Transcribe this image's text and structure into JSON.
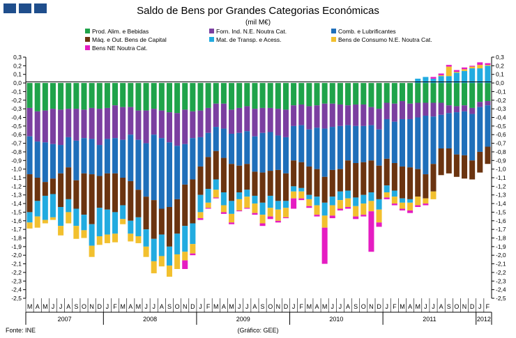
{
  "chart_data": {
    "type": "bar",
    "stacked": true,
    "title": "Saldo de Bens por Grandes Categorias Económicas",
    "subtitle": "(mil M€)",
    "source_left": "Fonte: INE",
    "source_center": "(Gráfico: GEE)",
    "ylim": [
      -2.5,
      0.3
    ],
    "yticks": [
      "0,3",
      "0,2",
      "0,1",
      "0,0",
      "-0,1",
      "-0,2",
      "-0,3",
      "-0,4",
      "-0,5",
      "-0,6",
      "-0,7",
      "-0,8",
      "-0,9",
      "-1,0",
      "-1,1",
      "-1,2",
      "-1,3",
      "-1,4",
      "-1,5",
      "-1,6",
      "-1,7",
      "-1,8",
      "-1,9",
      "-2,0",
      "-2,1",
      "-2,2",
      "-2,3",
      "-2,4",
      "-2,5"
    ],
    "grid": false,
    "legend_position": "top",
    "months": [
      "M",
      "A",
      "M",
      "J",
      "J",
      "A",
      "S",
      "O",
      "N",
      "D",
      "J",
      "F",
      "M",
      "A",
      "M",
      "J",
      "J",
      "A",
      "S",
      "O",
      "N",
      "D",
      "J",
      "F",
      "M",
      "A",
      "M",
      "J",
      "J",
      "A",
      "S",
      "O",
      "N",
      "D",
      "J",
      "F",
      "M",
      "A",
      "M",
      "J",
      "J",
      "A",
      "S",
      "O",
      "N",
      "D",
      "J",
      "F",
      "M",
      "A",
      "M",
      "J",
      "J",
      "A",
      "S",
      "O",
      "N",
      "D",
      "J",
      "F"
    ],
    "years": [
      {
        "label": "2007",
        "start": 0,
        "count": 10
      },
      {
        "label": "2008",
        "start": 10,
        "count": 12
      },
      {
        "label": "2009",
        "start": 22,
        "count": 12
      },
      {
        "label": "2010",
        "start": 34,
        "count": 12
      },
      {
        "label": "2011",
        "start": 46,
        "count": 12
      },
      {
        "label": "2012",
        "start": 58,
        "count": 2
      }
    ],
    "series": [
      {
        "name": "Prod. Alim. e Bebidas",
        "color": "#1fa34a",
        "values": [
          -0.29,
          -0.33,
          -0.32,
          -0.3,
          -0.31,
          -0.3,
          -0.3,
          -0.31,
          -0.29,
          -0.3,
          -0.29,
          -0.26,
          -0.28,
          -0.28,
          -0.32,
          -0.32,
          -0.3,
          -0.32,
          -0.34,
          -0.35,
          -0.31,
          -0.33,
          -0.32,
          -0.29,
          -0.24,
          -0.24,
          -0.31,
          -0.29,
          -0.27,
          -0.3,
          -0.29,
          -0.29,
          -0.3,
          -0.31,
          -0.26,
          -0.25,
          -0.27,
          -0.26,
          -0.24,
          -0.24,
          -0.25,
          -0.26,
          -0.25,
          -0.25,
          -0.28,
          -0.3,
          -0.23,
          -0.24,
          -0.21,
          -0.24,
          -0.23,
          -0.23,
          -0.23,
          -0.23,
          -0.26,
          -0.27,
          -0.26,
          -0.29,
          -0.22,
          -0.21
        ]
      },
      {
        "name": "Forn. Ind. N.E. Noutra Cat.",
        "color": "#7b3fa0",
        "values": [
          -0.33,
          -0.35,
          -0.37,
          -0.41,
          -0.41,
          -0.33,
          -0.37,
          -0.33,
          -0.36,
          -0.42,
          -0.36,
          -0.38,
          -0.38,
          -0.32,
          -0.34,
          -0.38,
          -0.3,
          -0.32,
          -0.35,
          -0.38,
          -0.4,
          -0.31,
          -0.31,
          -0.29,
          -0.27,
          -0.29,
          -0.28,
          -0.29,
          -0.29,
          -0.32,
          -0.29,
          -0.28,
          -0.31,
          -0.32,
          -0.24,
          -0.24,
          -0.27,
          -0.26,
          -0.29,
          -0.27,
          -0.25,
          -0.23,
          -0.25,
          -0.25,
          -0.21,
          -0.24,
          -0.19,
          -0.21,
          -0.21,
          -0.18,
          -0.17,
          -0.15,
          -0.16,
          -0.14,
          -0.09,
          -0.07,
          -0.07,
          -0.07,
          -0.06,
          -0.05
        ]
      },
      {
        "name": "Comb. e Lubrificantes",
        "color": "#1f6fba",
        "values": [
          -0.44,
          -0.42,
          -0.46,
          -0.4,
          -0.33,
          -0.35,
          -0.46,
          -0.41,
          -0.41,
          -0.36,
          -0.4,
          -0.41,
          -0.44,
          -0.54,
          -0.58,
          -0.62,
          -0.76,
          -0.82,
          -0.75,
          -0.62,
          -0.47,
          -0.48,
          -0.34,
          -0.28,
          -0.28,
          -0.34,
          -0.35,
          -0.38,
          -0.38,
          -0.41,
          -0.46,
          -0.45,
          -0.4,
          -0.42,
          -0.4,
          -0.43,
          -0.43,
          -0.48,
          -0.56,
          -0.5,
          -0.5,
          -0.41,
          -0.43,
          -0.42,
          -0.41,
          -0.42,
          -0.46,
          -0.48,
          -0.55,
          -0.56,
          -0.6,
          -0.68,
          -0.55,
          -0.39,
          -0.41,
          -0.49,
          -0.51,
          -0.54,
          -0.52,
          -0.48
        ]
      },
      {
        "name": "Máq. e Out. Bens de Capital",
        "color": "#6b3410",
        "values": [
          -0.44,
          -0.27,
          -0.16,
          -0.18,
          -0.39,
          -0.37,
          -0.33,
          -0.48,
          -0.58,
          -0.37,
          -0.42,
          -0.45,
          -0.32,
          -0.46,
          -0.32,
          -0.38,
          -0.45,
          -0.3,
          -0.46,
          -0.4,
          -0.48,
          -0.51,
          -0.33,
          -0.37,
          -0.33,
          -0.4,
          -0.43,
          -0.31,
          -0.3,
          -0.28,
          -0.35,
          -0.29,
          -0.36,
          -0.32,
          -0.3,
          -0.3,
          -0.33,
          -0.32,
          -0.3,
          -0.31,
          -0.26,
          -0.35,
          -0.4,
          -0.38,
          -0.37,
          -0.39,
          -0.31,
          -0.32,
          -0.37,
          -0.37,
          -0.32,
          -0.28,
          -0.32,
          -0.31,
          -0.29,
          -0.26,
          -0.27,
          -0.22,
          -0.24,
          -0.2
        ]
      },
      {
        "name": "Mat. de Transp. e Acess.",
        "color": "#22abe0",
        "values": [
          -0.12,
          -0.18,
          -0.28,
          -0.27,
          -0.22,
          -0.15,
          -0.2,
          -0.18,
          -0.25,
          -0.33,
          -0.29,
          -0.25,
          -0.16,
          -0.15,
          -0.22,
          -0.2,
          -0.26,
          -0.25,
          -0.22,
          -0.24,
          -0.3,
          -0.24,
          -0.2,
          -0.16,
          -0.12,
          -0.15,
          -0.15,
          -0.08,
          -0.08,
          -0.09,
          -0.14,
          -0.14,
          -0.1,
          -0.08,
          -0.06,
          -0.04,
          -0.05,
          -0.1,
          -0.15,
          -0.1,
          -0.1,
          -0.09,
          -0.1,
          -0.1,
          -0.1,
          -0.12,
          -0.08,
          -0.07,
          -0.05,
          -0.04,
          0.05,
          0.07,
          0.05,
          0.08,
          0.08,
          0.12,
          0.14,
          0.17,
          0.17,
          0.2
        ]
      },
      {
        "name": "Bens de Consumo N.E. Noutra Cat.",
        "color": "#f2c02e",
        "values": [
          -0.07,
          -0.13,
          -0.04,
          -0.03,
          -0.11,
          -0.13,
          -0.15,
          -0.09,
          -0.13,
          -0.1,
          -0.1,
          -0.1,
          -0.06,
          -0.09,
          -0.08,
          -0.12,
          -0.14,
          -0.12,
          -0.13,
          -0.17,
          -0.1,
          -0.11,
          -0.07,
          -0.06,
          -0.09,
          -0.08,
          -0.1,
          -0.13,
          -0.13,
          -0.11,
          -0.1,
          -0.1,
          -0.13,
          -0.11,
          -0.08,
          -0.08,
          -0.08,
          -0.11,
          -0.14,
          -0.12,
          -0.1,
          -0.1,
          -0.12,
          -0.13,
          -0.12,
          -0.15,
          -0.06,
          -0.08,
          -0.07,
          -0.09,
          -0.1,
          -0.06,
          -0.09,
          0.01,
          0.11,
          0.01,
          0.02,
          0.02,
          0.04,
          0.01
        ]
      },
      {
        "name": "Bens NE Noutra Cat.",
        "color": "#e51cc2",
        "values": [
          0.0,
          0.0,
          0.0,
          0.0,
          0.0,
          0.0,
          0.0,
          0.0,
          0.0,
          0.0,
          0.0,
          0.0,
          0.0,
          0.0,
          0.0,
          0.0,
          0.0,
          0.0,
          0.0,
          0.0,
          -0.1,
          -0.02,
          -0.02,
          -0.01,
          -0.01,
          -0.02,
          -0.02,
          -0.01,
          -0.01,
          -0.02,
          -0.03,
          -0.03,
          -0.02,
          -0.01,
          -0.12,
          -0.02,
          -0.02,
          -0.02,
          -0.42,
          -0.03,
          -0.02,
          -0.02,
          -0.03,
          -0.02,
          -0.47,
          -0.05,
          -0.02,
          -0.02,
          -0.02,
          -0.03,
          -0.02,
          -0.02,
          0.02,
          0.02,
          0.02,
          0.02,
          0.02,
          0.01,
          0.03,
          0.02
        ]
      }
    ]
  }
}
